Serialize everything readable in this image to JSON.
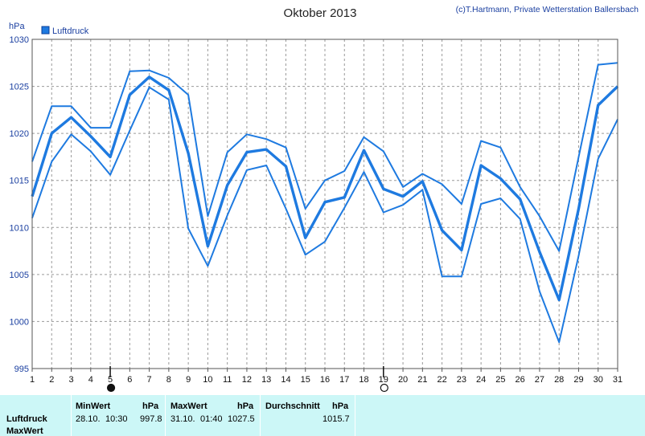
{
  "header": {
    "title": "Oktober 2013",
    "credit": "(c)T.Hartmann, Private Wetterstation Ballersbach",
    "unit": "hPa"
  },
  "colors": {
    "series": "#1e7ae0",
    "panel": "#ccf7f7"
  },
  "chart_data": {
    "type": "line",
    "legend": {
      "entries": [
        "Luftdruck"
      ],
      "placement": "top-left"
    },
    "grid": true,
    "ylim": [
      995,
      1030
    ],
    "yticks": [
      995,
      1000,
      1005,
      1010,
      1015,
      1020,
      1025,
      1030
    ],
    "xlim": [
      1,
      31
    ],
    "x": [
      1,
      2,
      3,
      4,
      5,
      6,
      7,
      8,
      9,
      10,
      11,
      12,
      13,
      14,
      15,
      16,
      17,
      18,
      19,
      20,
      21,
      22,
      23,
      24,
      25,
      26,
      27,
      28,
      29,
      30,
      31
    ],
    "moon_phases": [
      {
        "day": 5,
        "symbol": "new-moon"
      },
      {
        "day": 19,
        "symbol": "full-moon"
      }
    ],
    "series": [
      {
        "role": "max",
        "values": [
          1017.0,
          1022.9,
          1022.9,
          1020.6,
          1020.6,
          1026.6,
          1026.7,
          1025.9,
          1024.1,
          1011.2,
          1018.0,
          1019.9,
          1019.4,
          1018.5,
          1012.0,
          1015.0,
          1016.0,
          1019.6,
          1018.1,
          1014.3,
          1015.7,
          1014.6,
          1012.5,
          1019.2,
          1018.5,
          1014.3,
          1011.2,
          1007.5,
          1017.5,
          1027.3,
          1027.5
        ]
      },
      {
        "role": "avg",
        "values": [
          1013.3,
          1020.0,
          1021.7,
          1019.7,
          1017.5,
          1024.1,
          1026.0,
          1024.6,
          1017.9,
          1008.0,
          1014.5,
          1018.0,
          1018.3,
          1016.5,
          1008.9,
          1012.7,
          1013.2,
          1018.2,
          1014.1,
          1013.3,
          1014.9,
          1009.7,
          1007.6,
          1016.6,
          1015.2,
          1013.0,
          1007.4,
          1002.3,
          1012.0,
          1023.0,
          1025.0
        ]
      },
      {
        "role": "min",
        "values": [
          1011.0,
          1017.0,
          1019.9,
          1018.1,
          1015.6,
          1020.3,
          1024.9,
          1023.6,
          1009.9,
          1005.9,
          1011.3,
          1016.1,
          1016.6,
          1012.0,
          1007.1,
          1008.5,
          1012.1,
          1015.9,
          1011.6,
          1012.4,
          1014.0,
          1004.8,
          1004.8,
          1012.5,
          1013.1,
          1010.9,
          1003.2,
          997.8,
          1007.0,
          1017.3,
          1021.5
        ]
      }
    ]
  },
  "stats": {
    "row_labels": [
      "Luftdruck",
      "MaxWert"
    ],
    "min": {
      "header": "MinWert",
      "unit": "hPa",
      "date": "28.10.",
      "time": "10:30",
      "value": "997.8"
    },
    "max": {
      "header": "MaxWert",
      "unit": "hPa",
      "date": "31.10.",
      "time": "01:40",
      "value": "1027.5"
    },
    "avg": {
      "header": "Durchschnitt",
      "unit": "hPa",
      "value": "1015.7"
    }
  }
}
